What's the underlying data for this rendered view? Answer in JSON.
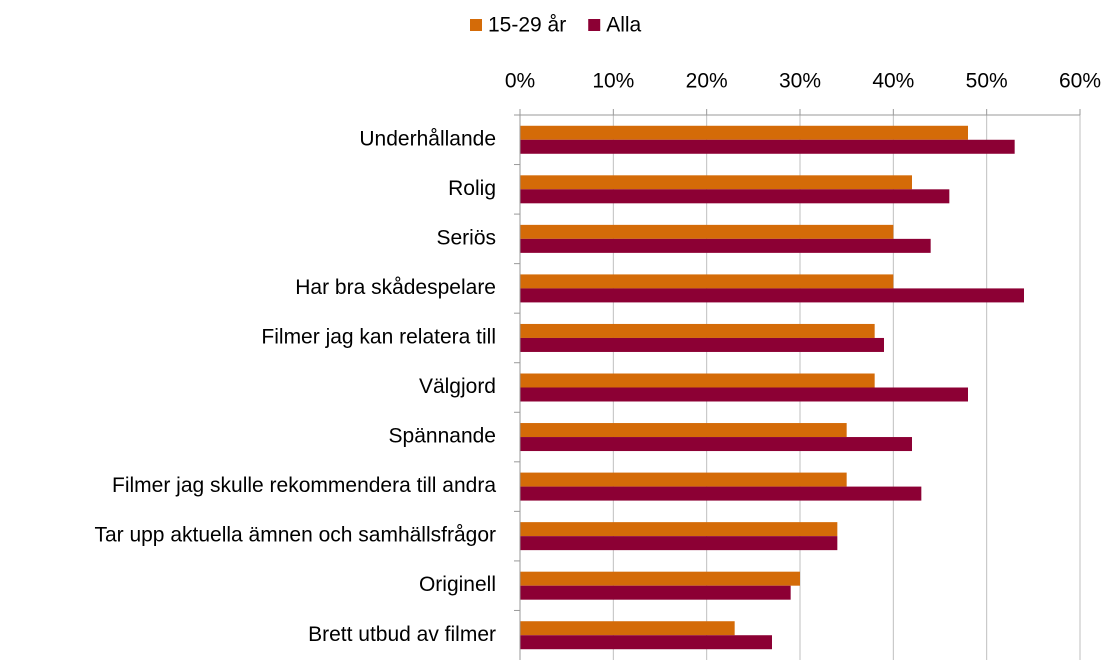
{
  "chart_data": {
    "type": "hbar",
    "categories": [
      "Underhållande",
      "Rolig",
      "Seriös",
      "Har bra skådespelare",
      "Filmer jag kan relatera till",
      "Välgjord",
      "Spännande",
      "Filmer jag skulle rekommendera till andra",
      "Tar upp aktuella ämnen och samhällsfrågor",
      "Originell",
      "Brett utbud av filmer"
    ],
    "series": [
      {
        "name": "15-29 år",
        "color": "#d46b08",
        "values": [
          48,
          42,
          40,
          40,
          38,
          38,
          35,
          35,
          34,
          30,
          23
        ]
      },
      {
        "name": "Alla",
        "color": "#8c0034",
        "values": [
          53,
          46,
          44,
          54,
          39,
          48,
          42,
          43,
          34,
          29,
          27
        ]
      }
    ],
    "xlim": [
      0,
      60
    ],
    "xticks": [
      {
        "value": 0,
        "label": "0%"
      },
      {
        "value": 10,
        "label": "10%"
      },
      {
        "value": 20,
        "label": "20%"
      },
      {
        "value": 30,
        "label": "30%"
      },
      {
        "value": 40,
        "label": "40%"
      },
      {
        "value": 50,
        "label": "50%"
      },
      {
        "value": 60,
        "label": "60%"
      }
    ],
    "grid": true,
    "legend": "top"
  }
}
